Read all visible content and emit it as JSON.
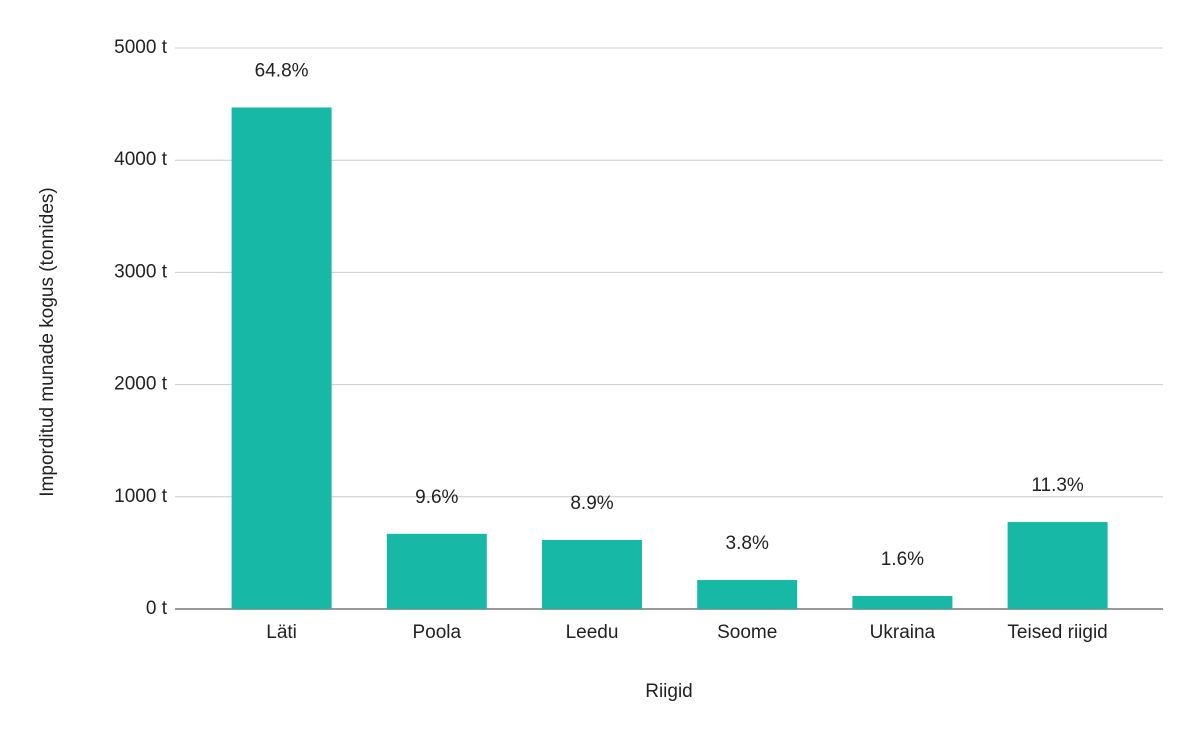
{
  "chart_data": {
    "type": "bar",
    "x_label": "Riigid",
    "y_label": "Imporditud munade kogus (tonnides)",
    "categories": [
      "Läti",
      "Poola",
      "Leedu",
      "Soome",
      "Ukraina",
      "Teised riigid"
    ],
    "values": [
      4470,
      670,
      615,
      258,
      116,
      775
    ],
    "annotations": [
      "64.8%",
      "9.6%",
      "8.9%",
      "3.8%",
      "1.6%",
      "11.3%"
    ],
    "color": "#17b8a6",
    "ylim": [
      0,
      5000
    ],
    "yticks": [
      {
        "value": 0,
        "label": "0 t"
      },
      {
        "value": 1000,
        "label": "1000 t"
      },
      {
        "value": 2000,
        "label": "2000 t"
      },
      {
        "value": 3000,
        "label": "3000 t"
      },
      {
        "value": 4000,
        "label": "4000 t"
      },
      {
        "value": 5000,
        "label": "5000 t"
      }
    ],
    "grid": true
  }
}
